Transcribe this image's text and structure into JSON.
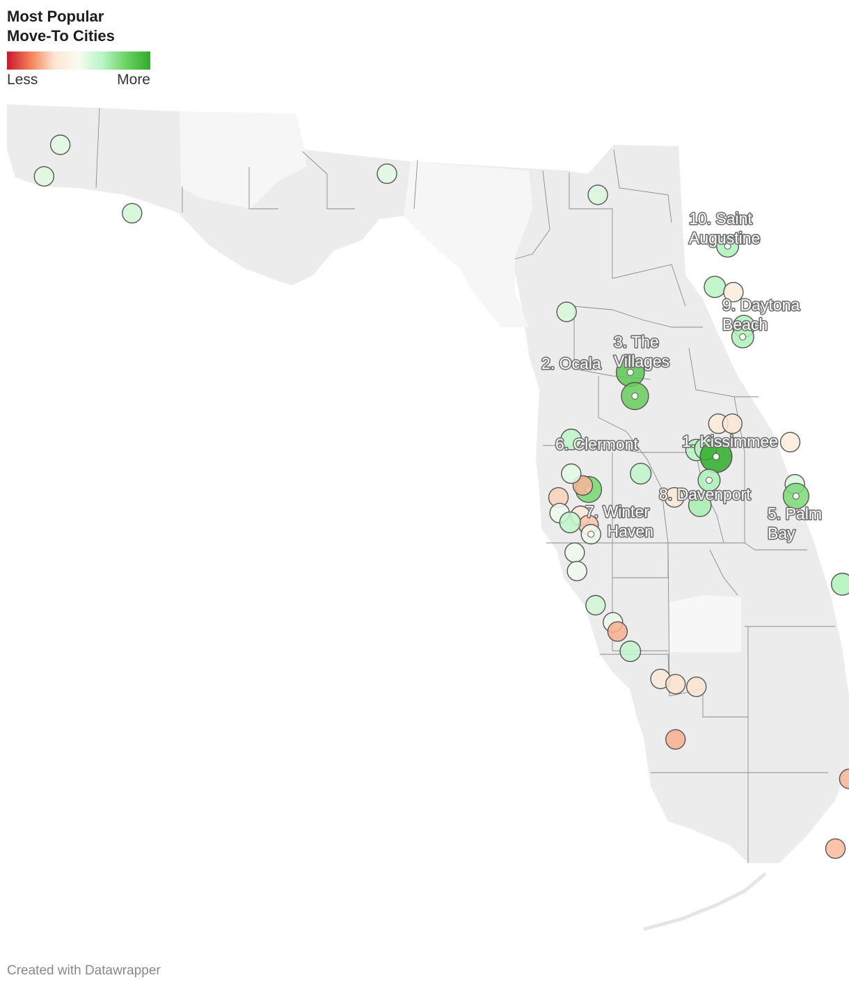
{
  "title_line1": "Most Popular",
  "title_line2": "Move-To Cities",
  "legend": {
    "low_label": "Less",
    "high_label": "More",
    "colors": [
      "#c7192f",
      "#f4845c",
      "#fde5d2",
      "#f8fbf2",
      "#b5f5c2",
      "#6dd264",
      "#2fab2a"
    ]
  },
  "credit": "Created with Datawrapper",
  "region": "Florida",
  "ranked_labels": [
    {
      "rank": 1,
      "line1": "1. Kissimmee",
      "line2": ""
    },
    {
      "rank": 2,
      "line1": "2. Ocala",
      "line2": ""
    },
    {
      "rank": 3,
      "line1": "3. The",
      "line2": "Villages"
    },
    {
      "rank": 5,
      "line1": "5. Palm",
      "line2": "Bay"
    },
    {
      "rank": 6,
      "line1": "6. Clermont",
      "line2": ""
    },
    {
      "rank": 7,
      "line1": "7. Winter",
      "line2": "Haven"
    },
    {
      "rank": 8,
      "line1": "8. Davenport",
      "line2": ""
    },
    {
      "rank": 9,
      "line1": "9. Daytona",
      "line2": "Beach"
    },
    {
      "rank": 10,
      "line1": "10. Saint",
      "line2": "Augustine"
    }
  ],
  "markers": [
    {
      "lon": -87.1,
      "lat": 30.66,
      "popularity": 0.55
    },
    {
      "lon": -87.24,
      "lat": 30.42,
      "popularity": 0.56
    },
    {
      "lon": -86.48,
      "lat": 30.14,
      "popularity": 0.6
    },
    {
      "lon": -84.28,
      "lat": 30.44,
      "popularity": 0.55
    },
    {
      "lon": -82.46,
      "lat": 30.28,
      "popularity": 0.57
    },
    {
      "lon": -82.73,
      "lat": 29.39,
      "popularity": 0.58
    },
    {
      "lon": -81.34,
      "lat": 29.89,
      "popularity": 0.68,
      "ranked": 10
    },
    {
      "lon": -81.45,
      "lat": 29.58,
      "popularity": 0.66
    },
    {
      "lon": -81.29,
      "lat": 29.54,
      "popularity": 0.38
    },
    {
      "lon": -81.2,
      "lat": 29.28,
      "popularity": 0.68
    },
    {
      "lon": -81.21,
      "lat": 29.2,
      "popularity": 0.68,
      "ranked": 9
    },
    {
      "lon": -82.18,
      "lat": 28.93,
      "popularity": 0.88,
      "ranked": 3
    },
    {
      "lon": -82.14,
      "lat": 28.75,
      "popularity": 0.85,
      "ranked": 2
    },
    {
      "lon": -81.61,
      "lat": 28.34,
      "popularity": 0.66
    },
    {
      "lon": -81.53,
      "lat": 28.35,
      "popularity": 0.68
    },
    {
      "lon": -81.42,
      "lat": 28.54,
      "popularity": 0.38
    },
    {
      "lon": -81.3,
      "lat": 28.54,
      "popularity": 0.35
    },
    {
      "lon": -80.8,
      "lat": 28.4,
      "popularity": 0.38
    },
    {
      "lon": -82.69,
      "lat": 28.42,
      "popularity": 0.64
    },
    {
      "lon": -82.54,
      "lat": 28.04,
      "popularity": 0.81,
      "ranked": 6
    },
    {
      "lon": -82.59,
      "lat": 28.07,
      "popularity": 0.25
    },
    {
      "lon": -81.44,
      "lat": 28.29,
      "popularity": 1.0,
      "ranked": 1
    },
    {
      "lon": -81.5,
      "lat": 28.11,
      "popularity": 0.68,
      "ranked": 8
    },
    {
      "lon": -81.58,
      "lat": 27.92,
      "popularity": 0.7
    },
    {
      "lon": -81.8,
      "lat": 27.98,
      "popularity": 0.35
    },
    {
      "lon": -82.09,
      "lat": 28.16,
      "popularity": 0.64
    },
    {
      "lon": -82.69,
      "lat": 28.16,
      "popularity": 0.55
    },
    {
      "lon": -82.61,
      "lat": 27.84,
      "popularity": 0.35
    },
    {
      "lon": -82.54,
      "lat": 27.77,
      "popularity": 0.28
    },
    {
      "lon": -82.52,
      "lat": 27.7,
      "popularity": 0.52,
      "ranked": 7
    },
    {
      "lon": -82.8,
      "lat": 27.98,
      "popularity": 0.3
    },
    {
      "lon": -82.79,
      "lat": 27.86,
      "popularity": 0.52
    },
    {
      "lon": -82.7,
      "lat": 27.79,
      "popularity": 0.64
    },
    {
      "lon": -80.76,
      "lat": 28.08,
      "popularity": 0.57
    },
    {
      "lon": -80.75,
      "lat": 27.99,
      "popularity": 0.8,
      "ranked": 5
    },
    {
      "lon": -82.66,
      "lat": 27.56,
      "popularity": 0.52
    },
    {
      "lon": -82.64,
      "lat": 27.42,
      "popularity": 0.52
    },
    {
      "lon": -82.48,
      "lat": 27.16,
      "popularity": 0.6
    },
    {
      "lon": -82.33,
      "lat": 27.03,
      "popularity": 0.53
    },
    {
      "lon": -82.29,
      "lat": 26.96,
      "popularity": 0.24
    },
    {
      "lon": -82.18,
      "lat": 26.81,
      "popularity": 0.63
    },
    {
      "lon": -81.92,
      "lat": 26.6,
      "popularity": 0.36
    },
    {
      "lon": -81.79,
      "lat": 26.56,
      "popularity": 0.33
    },
    {
      "lon": -81.61,
      "lat": 26.54,
      "popularity": 0.33
    },
    {
      "lon": -81.79,
      "lat": 26.14,
      "popularity": 0.24
    },
    {
      "lon": -80.35,
      "lat": 27.32,
      "popularity": 0.68
    },
    {
      "lon": -80.1,
      "lat": 26.86,
      "popularity": 0.65
    },
    {
      "lon": -80.06,
      "lat": 26.74,
      "popularity": 0.2
    },
    {
      "lon": -80.0,
      "lat": 26.57,
      "popularity": 0.38
    },
    {
      "lon": -79.98,
      "lat": 26.46,
      "popularity": 0.05
    },
    {
      "lon": -80.0,
      "lat": 26.38,
      "popularity": 0.55
    },
    {
      "lon": -80.01,
      "lat": 26.29,
      "popularity": 0.4
    },
    {
      "lon": -80.04,
      "lat": 26.12,
      "popularity": 0.64
    },
    {
      "lon": -80.07,
      "lat": 26.05,
      "popularity": 0.32
    },
    {
      "lon": -80.07,
      "lat": 26.01,
      "popularity": 0.05
    },
    {
      "lon": -80.29,
      "lat": 25.84,
      "popularity": 0.25
    },
    {
      "lon": -80.16,
      "lat": 25.62,
      "popularity": 0.22
    },
    {
      "lon": -80.41,
      "lat": 25.31,
      "popularity": 0.26
    }
  ]
}
